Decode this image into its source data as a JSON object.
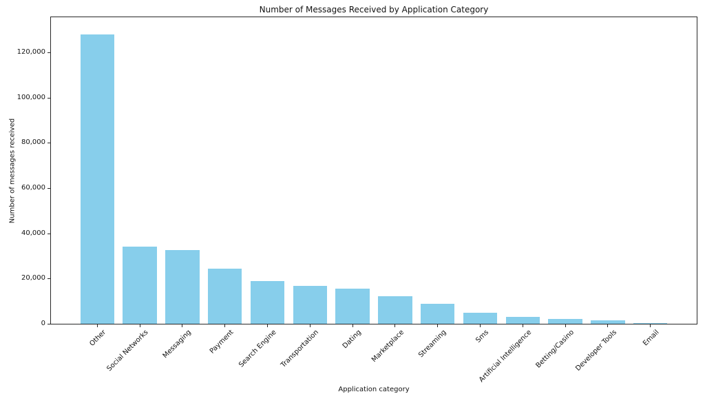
{
  "chart_data": {
    "type": "bar",
    "title": "Number of Messages Received by Application Category",
    "xlabel": "Application category",
    "ylabel": "Number of messages received",
    "categories": [
      "Other",
      "Social Networks",
      "Messaging",
      "Payment",
      "Search Engine",
      "Transportation",
      "Dating",
      "Marketplace",
      "Streaming",
      "Sms",
      "Artificial Intelligence",
      "Betting/Casino",
      "Developer Tools",
      "Email"
    ],
    "values": [
      128000,
      34000,
      32500,
      24400,
      18900,
      16700,
      15600,
      12100,
      8800,
      4900,
      2900,
      2150,
      1400,
      350
    ],
    "bar_color": "#87ceeb",
    "axis_color": "#262626",
    "text_color": "#111111",
    "ylim": [
      0,
      135500
    ],
    "yticks": [
      0,
      20000,
      40000,
      60000,
      80000,
      100000,
      120000
    ],
    "ytick_labels": [
      "0",
      "20,000",
      "40,000",
      "60,000",
      "80,000",
      "100,000",
      "120,000"
    ],
    "xlim": [
      -1.09,
      14.09
    ],
    "bar_width_fraction": 0.8,
    "xtick_rotation_deg": 45,
    "grid": false,
    "legend": "none"
  }
}
